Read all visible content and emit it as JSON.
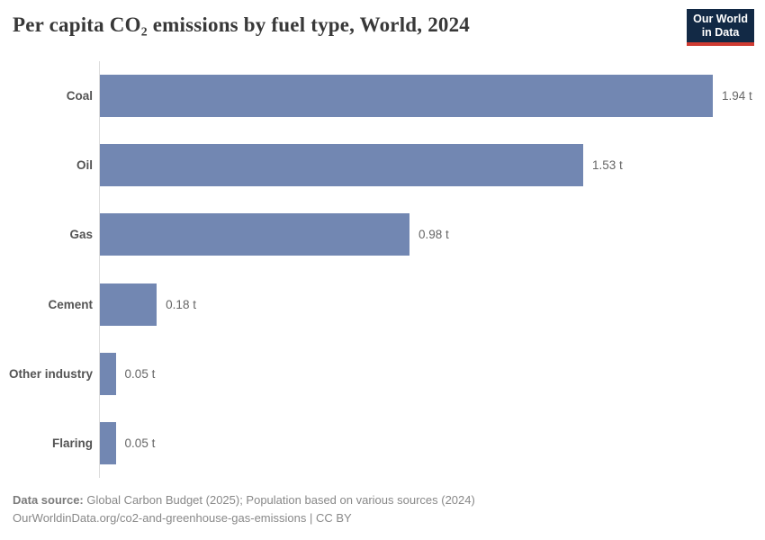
{
  "header": {
    "title": "Per capita CO₂ emissions by fuel type, World, 2024",
    "logo_line1": "Our World",
    "logo_line2": "in Data"
  },
  "colors": {
    "bar": "#7287b2",
    "axis_line": "#dcdcdc",
    "logo_bg": "#122945",
    "logo_accent": "#cf3b32",
    "title_text": "#383838",
    "category_text": "#545454",
    "value_text": "#666666",
    "footer_text": "#888888"
  },
  "chart_data": {
    "type": "bar",
    "orientation": "horizontal",
    "title": "Per capita CO₂ emissions by fuel type, World, 2024",
    "categories": [
      "Coal",
      "Oil",
      "Gas",
      "Cement",
      "Other industry",
      "Flaring"
    ],
    "values": [
      1.94,
      1.53,
      0.98,
      0.18,
      0.05,
      0.05
    ],
    "value_labels": [
      "1.94 t",
      "1.53 t",
      "0.98 t",
      "0.18 t",
      "0.05 t",
      "0.05 t"
    ],
    "unit": "t",
    "xlabel": "",
    "ylabel": "",
    "xlim": [
      0,
      2.07
    ],
    "grid": false,
    "legend": false,
    "value_label_position": "end-of-bar"
  },
  "footer": {
    "source_label": "Data source:",
    "source_text": "Global Carbon Budget (2025); Population based on various sources (2024)",
    "url_line": "OurWorldinData.org/co2-and-greenhouse-gas-emissions | CC BY"
  }
}
